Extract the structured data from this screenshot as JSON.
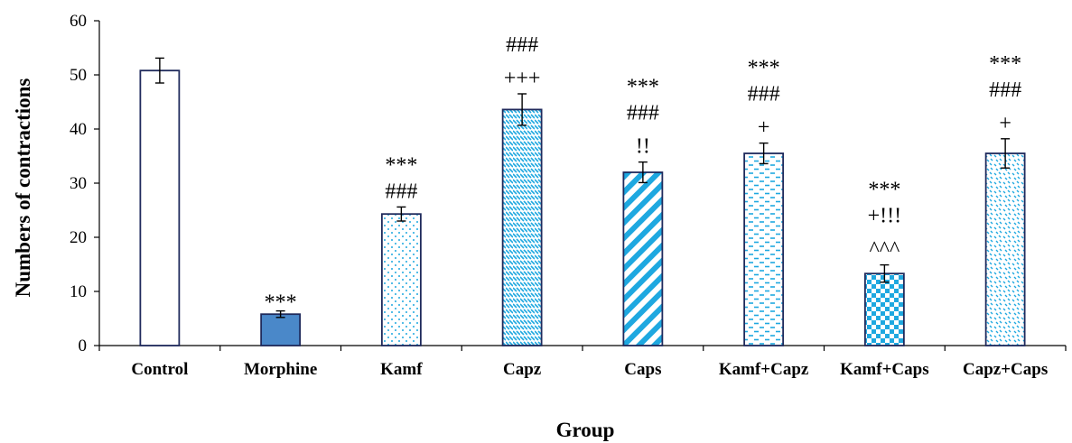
{
  "chart_data": {
    "type": "bar",
    "xlabel": "Group",
    "ylabel": "Numbers of contractions",
    "ylim": [
      0,
      60
    ],
    "yticks": [
      "0",
      "10",
      "20",
      "30",
      "40",
      "50",
      "60"
    ],
    "grid": false,
    "categories": [
      "Control",
      "Morphine",
      "Kamf",
      "Capz",
      "Caps",
      "Kamf+Capz",
      "Kamf+Caps",
      "Capz+Caps"
    ],
    "values": [
      50.8,
      5.8,
      24.3,
      43.6,
      32.0,
      35.5,
      13.3,
      35.5
    ],
    "errors": [
      2.3,
      0.6,
      1.3,
      2.9,
      1.9,
      1.9,
      1.6,
      2.7
    ],
    "annotations": [
      [],
      [
        "***"
      ],
      [
        "***",
        "###"
      ],
      [
        "###",
        "+++"
      ],
      [
        "***",
        "###",
        "!!"
      ],
      [
        "***",
        "###",
        "+"
      ],
      [
        "***",
        "+!!!",
        "^^^"
      ],
      [
        "***",
        "###",
        "+"
      ]
    ],
    "bar_styles": [
      {
        "fill": "#ffffff",
        "pattern": "none"
      },
      {
        "fill": "#4a88c9",
        "pattern": "solid"
      },
      {
        "fill": "#1ea8e0",
        "pattern": "dots"
      },
      {
        "fill": "#1ea8e0",
        "pattern": "fine-diagonal"
      },
      {
        "fill": "#1ea8e0",
        "pattern": "wide-diagonal"
      },
      {
        "fill": "#1ea8e0",
        "pattern": "dashes"
      },
      {
        "fill": "#1ea8e0",
        "pattern": "checker"
      },
      {
        "fill": "#1ea8e0",
        "pattern": "confetti"
      }
    ],
    "bar_outline_color": "#1f2a5c"
  }
}
